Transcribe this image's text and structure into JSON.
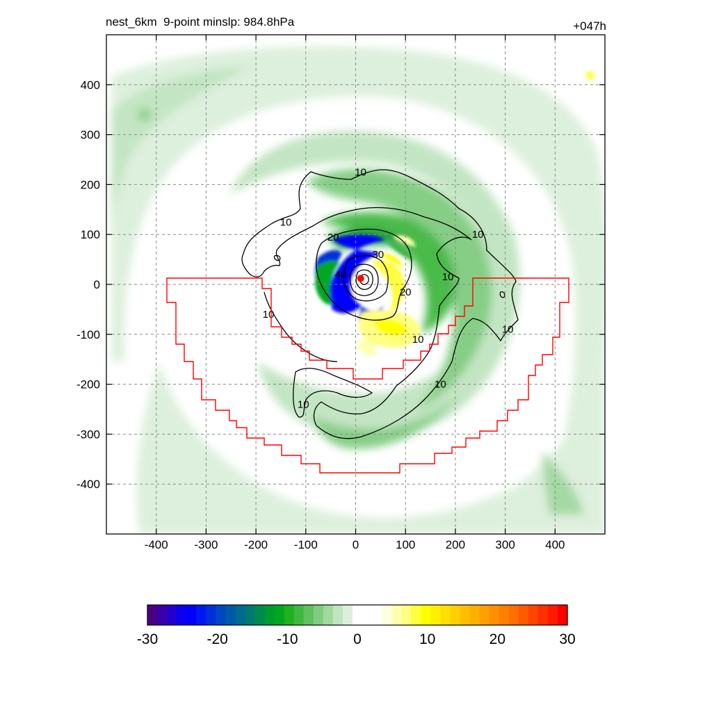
{
  "header": {
    "title_left": "nest_6km  9-point minslp: 984.8hPa",
    "title_right": "+047h"
  },
  "chart_data": {
    "type": "heatmap",
    "title": "nest_6km  9-point minslp: 984.8hPa",
    "forecast_hour": "+047h",
    "xlim": [
      -500,
      500
    ],
    "ylim": [
      -500,
      500
    ],
    "x_ticks": [
      -400,
      -300,
      -200,
      -100,
      0,
      100,
      200,
      300,
      400
    ],
    "y_ticks": [
      400,
      300,
      200,
      100,
      0,
      -100,
      -200,
      -300,
      -400
    ],
    "grid": true,
    "grid_style": "dashed",
    "colorbar": {
      "min": -30,
      "max": 30,
      "tick_values": [
        -30,
        -20,
        -10,
        0,
        10,
        20,
        30
      ],
      "colors": [
        "#4b0082",
        "#3a00a8",
        "#2400d0",
        "#0a00f0",
        "#0000ff",
        "#0018f0",
        "#0030d8",
        "#0048c0",
        "#005aa8",
        "#006a90",
        "#007a70",
        "#008a50",
        "#009a30",
        "#00a820",
        "#20b020",
        "#40b840",
        "#60c060",
        "#80cc80",
        "#a0d8a0",
        "#c0e4c0",
        "#dcefdc",
        "#ffffff",
        "#ffffff",
        "#ffffff",
        "#ffffe0",
        "#ffffb0",
        "#ffff80",
        "#ffff40",
        "#ffff00",
        "#ffef00",
        "#ffdf00",
        "#ffcf00",
        "#ffbf00",
        "#ffaf00",
        "#ff9f00",
        "#ff8f00",
        "#ff7f00",
        "#ff6f00",
        "#ff5a00",
        "#ff4500",
        "#ff3000",
        "#ff1a00",
        "#ff0000"
      ]
    },
    "contour_labels": [
      {
        "text": "10",
        "x": 10,
        "y": 225
      },
      {
        "text": "10",
        "x": -140,
        "y": 125
      },
      {
        "text": "10",
        "x": 245,
        "y": 100
      },
      {
        "text": "10",
        "x": 185,
        "y": 15
      },
      {
        "text": "10",
        "x": -175,
        "y": -60
      },
      {
        "text": "10",
        "x": 305,
        "y": -90
      },
      {
        "text": "10",
        "x": 125,
        "y": -110
      },
      {
        "text": "10",
        "x": 170,
        "y": -200
      },
      {
        "text": "10",
        "x": -105,
        "y": -240
      },
      {
        "text": "20",
        "x": -45,
        "y": 95
      },
      {
        "text": "20",
        "x": 100,
        "y": -15
      },
      {
        "text": "30",
        "x": 45,
        "y": 60
      },
      {
        "text": "40",
        "x": -30,
        "y": 20
      }
    ],
    "center_marker": {
      "x": 10,
      "y": 12,
      "color": "#ff0000"
    },
    "line_colors": {
      "contour": "#000000",
      "region": "#ff0000"
    }
  }
}
